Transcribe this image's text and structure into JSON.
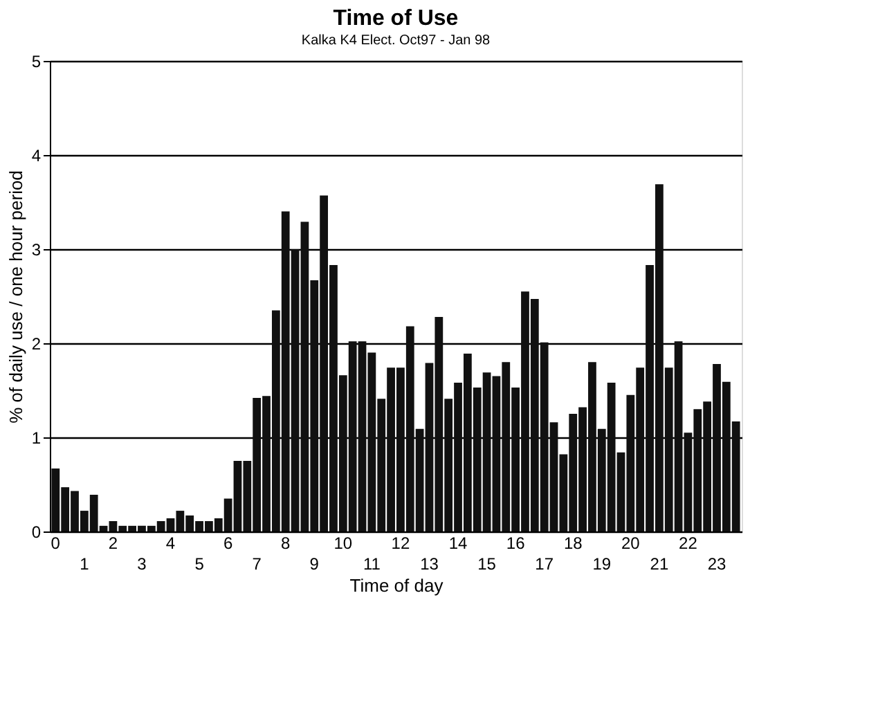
{
  "chart_data": {
    "type": "bar",
    "title": "Time of Use",
    "subtitle": "Kalka K4 Elect. Oct97 - Jan 98",
    "xlabel": "Time of day",
    "ylabel": "% of daily use / one hour period",
    "categories": [
      "0",
      null,
      null,
      "1",
      null,
      null,
      "2",
      null,
      null,
      "3",
      null,
      null,
      "4",
      null,
      null,
      "5",
      null,
      null,
      "6",
      null,
      null,
      "7",
      null,
      null,
      "8",
      null,
      null,
      "9",
      null,
      null,
      "10",
      null,
      null,
      "11",
      null,
      null,
      "12",
      null,
      null,
      "13",
      null,
      null,
      "14",
      null,
      null,
      "15",
      null,
      null,
      "16",
      null,
      null,
      "17",
      null,
      null,
      "18",
      null,
      null,
      "19",
      null,
      null,
      "20",
      null,
      null,
      "21",
      null,
      null,
      "22",
      null,
      null,
      "23",
      null,
      null
    ],
    "values": [
      0.67,
      0.47,
      0.43,
      0.22,
      0.39,
      0.06,
      0.11,
      0.06,
      0.06,
      0.06,
      0.06,
      0.11,
      0.14,
      0.22,
      0.17,
      0.11,
      0.11,
      0.14,
      0.35,
      0.75,
      0.75,
      1.42,
      1.44,
      2.35,
      3.4,
      3.0,
      3.29,
      2.67,
      3.57,
      2.83,
      1.66,
      2.02,
      2.02,
      1.9,
      1.41,
      1.74,
      1.74,
      2.18,
      1.09,
      1.79,
      2.28,
      1.41,
      1.58,
      1.89,
      1.53,
      1.69,
      1.65,
      1.8,
      1.53,
      2.55,
      2.47,
      2.01,
      1.16,
      0.82,
      1.25,
      1.32,
      1.8,
      1.09,
      1.58,
      0.84,
      1.45,
      1.74,
      2.83,
      3.69,
      1.74,
      2.02,
      1.05,
      1.3,
      1.38,
      1.78,
      1.59,
      1.17
    ],
    "color": "#111111",
    "ylim": [
      0,
      5
    ],
    "yticks": [
      0,
      1,
      2,
      3,
      4,
      5
    ],
    "grid": "y"
  }
}
